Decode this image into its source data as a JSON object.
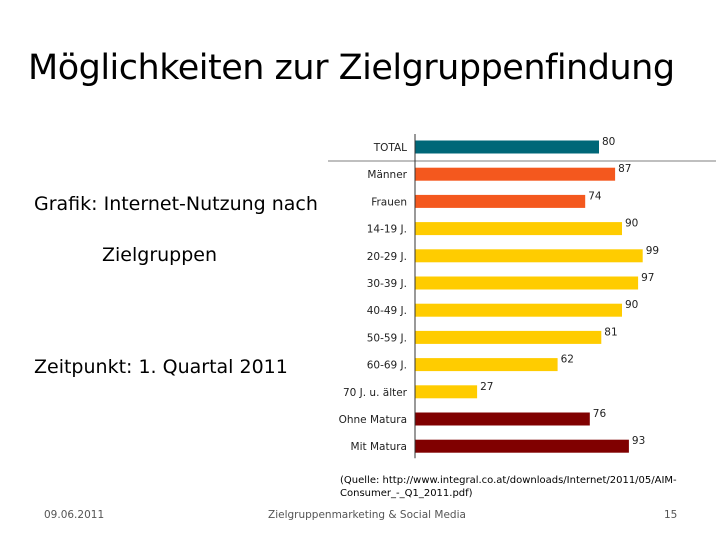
{
  "slide": {
    "title": "Möglichkeiten zur Zielgruppenfindung",
    "line1": "Grafik: Internet-Nutzung nach",
    "line2": "Zielgruppen",
    "line3": "Zeitpunkt: 1. Quartal 2011",
    "source": "(Quelle: http://www.integral.co.at/downloads/Internet/2011/05/AIM-Consumer_-_Q1_2011.pdf)"
  },
  "footer": {
    "date": "09.06.2011",
    "center": "Zielgruppenmarketing & Social Media",
    "page": "15"
  },
  "chart_data": {
    "type": "bar",
    "orientation": "horizontal",
    "categories": [
      "TOTAL",
      "Männer",
      "Frauen",
      "14-19 J.",
      "20-29 J.",
      "30-39 J.",
      "40-49 J.",
      "50-59 J.",
      "60-69 J.",
      "70 J. u. älter",
      "Ohne Matura",
      "Mit Matura"
    ],
    "values": [
      80,
      87,
      74,
      90,
      99,
      97,
      90,
      81,
      62,
      27,
      76,
      93
    ],
    "colors": [
      "#006778",
      "#f4581e",
      "#f4581e",
      "#ffcc00",
      "#ffcc00",
      "#ffcc00",
      "#ffcc00",
      "#ffcc00",
      "#ffcc00",
      "#ffcc00",
      "#800000",
      "#800000"
    ],
    "xlim": [
      0,
      100
    ],
    "grid": false,
    "legend": "none"
  }
}
